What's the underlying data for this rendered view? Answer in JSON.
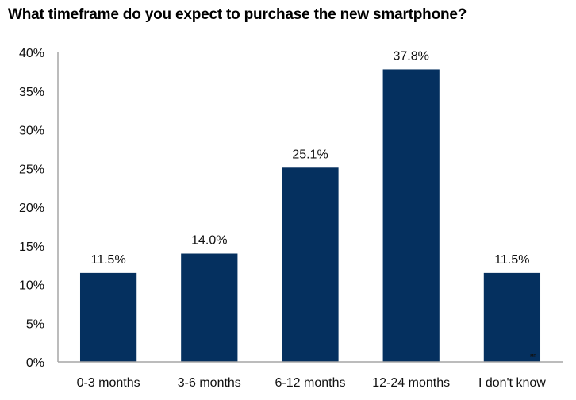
{
  "chart_data": {
    "type": "bar",
    "title": "What timeframe do you expect to purchase the new smartphone?",
    "categories": [
      "0-3 months",
      "3-6 months",
      "6-12 months",
      "12-24 months",
      "I don't know"
    ],
    "values": [
      11.5,
      14.0,
      25.1,
      37.8,
      11.5
    ],
    "data_labels": [
      "11.5%",
      "14.0%",
      "25.1%",
      "37.8%",
      "11.5%"
    ],
    "xlabel": "",
    "ylabel": "",
    "ylim": [
      0,
      40
    ],
    "yticks": [
      0,
      5,
      10,
      15,
      20,
      25,
      30,
      35,
      40
    ],
    "ytick_labels": [
      "0%",
      "5%",
      "10%",
      "15%",
      "20%",
      "25%",
      "30%",
      "35%",
      "40%"
    ],
    "grid": false,
    "legend": "none",
    "bar_color": "#05305f",
    "axis_color": "#a6a6a6",
    "watermark": "MR"
  }
}
